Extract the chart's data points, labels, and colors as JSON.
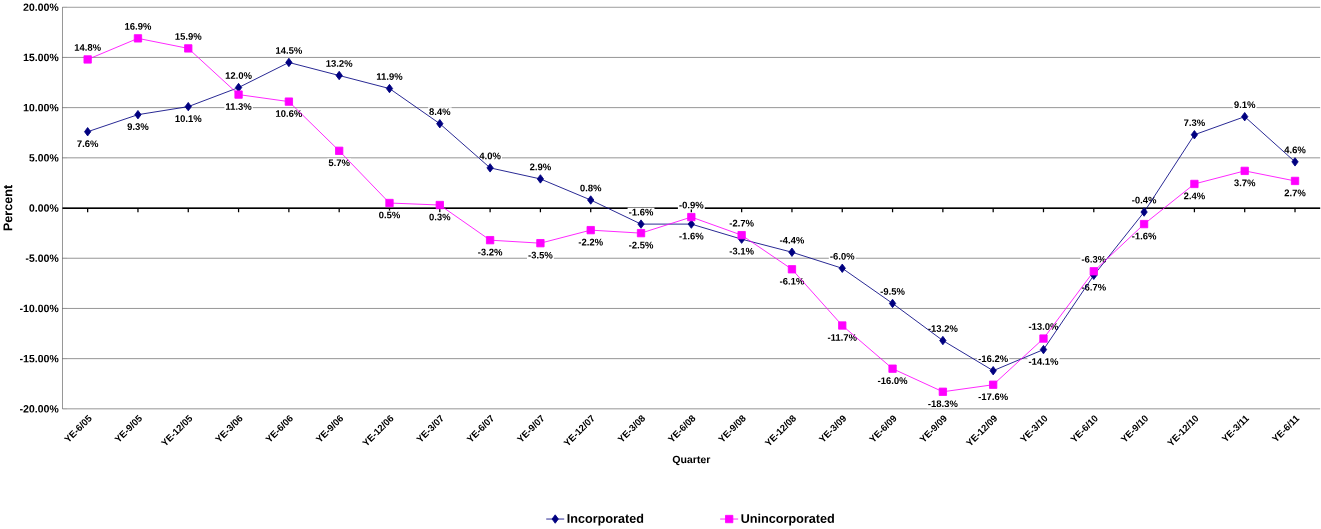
{
  "chart_data": {
    "type": "line",
    "xlabel": "Quarter",
    "ylabel": "Percent",
    "categories": [
      "YE-6/05",
      "YE-9/05",
      "YE-12/05",
      "YE-3/06",
      "YE-6/06",
      "YE-9/06",
      "YE-12/06",
      "YE-3/07",
      "YE-6/07",
      "YE-9/07",
      "YE-12/07",
      "YE-3/08",
      "YE-6/08",
      "YE-9/08",
      "YE-12/08",
      "YE-3/09",
      "YE-6/09",
      "YE-9/09",
      "YE-12/09",
      "YE-3/10",
      "YE-6/10",
      "YE-9/10",
      "YE-12/10",
      "YE-3/11",
      "YE-6/11"
    ],
    "series": [
      {
        "name": "Incorporated",
        "color": "#000080",
        "marker": "diamond",
        "values": [
          7.6,
          9.3,
          10.1,
          12.0,
          14.5,
          13.2,
          11.9,
          8.4,
          4.0,
          2.9,
          0.8,
          -1.6,
          -1.6,
          -3.1,
          -4.4,
          -6.0,
          -9.5,
          -13.2,
          -16.2,
          -14.1,
          -6.7,
          -0.4,
          7.3,
          9.1,
          4.6
        ],
        "value_labels": [
          "7.6%",
          "9.3%",
          "10.1%",
          "12.0%",
          "14.5%",
          "13.2%",
          "11.9%",
          "8.4%",
          "4.0%",
          "2.9%",
          "0.8%",
          "-1.6%",
          "-1.6%",
          "-3.1%",
          "-4.4%",
          "-6.0%",
          "-9.5%",
          "-13.2%",
          "-16.2%",
          "-14.1%",
          "-6.7%",
          "-0.4%",
          "7.3%",
          "9.1%",
          "4.6%"
        ]
      },
      {
        "name": "Unincorporated",
        "color": "#ff00ff",
        "marker": "square",
        "values": [
          14.8,
          16.9,
          15.9,
          11.3,
          10.6,
          5.7,
          0.5,
          0.3,
          -3.2,
          -3.5,
          -2.2,
          -2.5,
          -0.9,
          -2.7,
          -6.1,
          -11.7,
          -16.0,
          -18.3,
          -17.6,
          -13.0,
          -6.3,
          -1.6,
          2.4,
          3.7,
          2.7
        ],
        "value_labels": [
          "14.8%",
          "16.9%",
          "15.9%",
          "11.3%",
          "10.6%",
          "5.7%",
          "0.5%",
          "0.3%",
          "-3.2%",
          "-3.5%",
          "-2.2%",
          "-2.5%",
          "-0.9%",
          "-2.7%",
          "-6.1%",
          "-11.7%",
          "-16.0%",
          "-18.3%",
          "-17.6%",
          "-13.0%",
          "-6.3%",
          "-1.6%",
          "2.4%",
          "3.7%",
          "2.7%"
        ]
      }
    ],
    "ylim": [
      -20,
      20
    ],
    "yticks": [
      {
        "value": -20,
        "label": "-20.00%"
      },
      {
        "value": -15,
        "label": "-15.00%"
      },
      {
        "value": -10,
        "label": "-10.00%"
      },
      {
        "value": -5,
        "label": "-5.00%"
      },
      {
        "value": 0,
        "label": "0.00%"
      },
      {
        "value": 5,
        "label": "5.00%"
      },
      {
        "value": 10,
        "label": "10.00%"
      },
      {
        "value": 15,
        "label": "15.00%"
      },
      {
        "value": 20,
        "label": "20.00%"
      }
    ],
    "grid": "y",
    "legend": "bottom",
    "line_style": "solid"
  }
}
